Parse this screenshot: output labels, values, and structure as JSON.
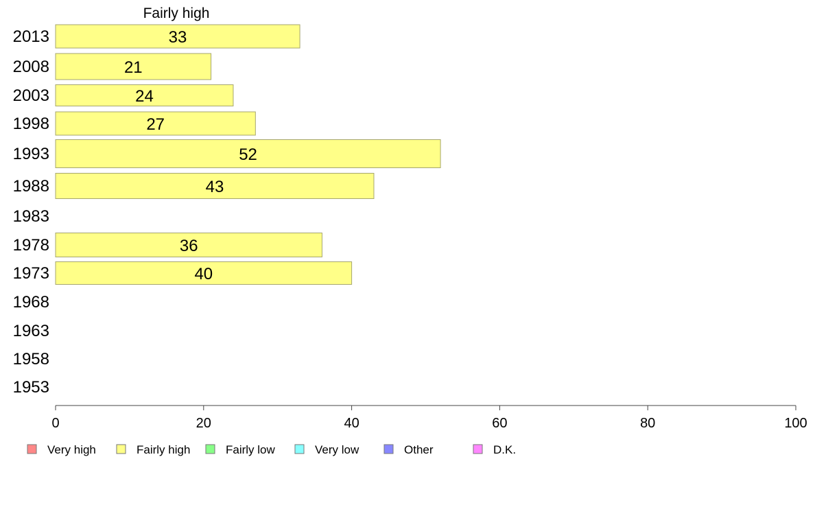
{
  "chart_data": {
    "type": "bar",
    "orientation": "horizontal",
    "title": "Fairly high",
    "categories": [
      "2013",
      "2008",
      "2003",
      "1998",
      "1993",
      "1988",
      "1983",
      "1978",
      "1973",
      "1968",
      "1963",
      "1958",
      "1953"
    ],
    "series": [
      {
        "name": "Fairly high",
        "values": [
          33,
          21,
          24,
          27,
          52,
          43,
          null,
          36,
          40,
          null,
          null,
          null,
          null
        ],
        "color": "#ffff88"
      }
    ],
    "xlim": [
      0,
      100
    ],
    "xticks": [
      "0",
      "20",
      "40",
      "60",
      "80",
      "100"
    ],
    "grid": false,
    "legend_position": "bottom",
    "legend": [
      {
        "label": "Very high",
        "color": "#ff8888"
      },
      {
        "label": "Fairly high",
        "color": "#ffff88"
      },
      {
        "label": "Fairly low",
        "color": "#88ff88"
      },
      {
        "label": "Very low",
        "color": "#88ffff"
      },
      {
        "label": "Other",
        "color": "#8888ff"
      },
      {
        "label": "D.K.",
        "color": "#ff88ff"
      }
    ]
  }
}
